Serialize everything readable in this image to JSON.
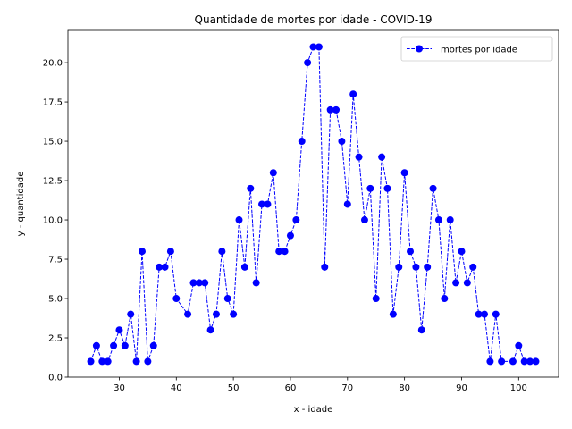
{
  "chart_data": {
    "type": "line",
    "title": "Quantidade de mortes por idade - COVID-19",
    "xlabel": "x - idade",
    "ylabel": "y - quantidade",
    "xlim": [
      21,
      107
    ],
    "ylim": [
      0,
      22.05
    ],
    "xticks": [
      30,
      40,
      50,
      60,
      70,
      80,
      90,
      100
    ],
    "yticks": [
      0.0,
      2.5,
      5.0,
      7.5,
      10.0,
      12.5,
      15.0,
      17.5,
      20.0
    ],
    "ytick_labels": [
      "0.0",
      "2.5",
      "5.0",
      "7.5",
      "10.0",
      "12.5",
      "15.0",
      "17.5",
      "20.0"
    ],
    "grid": false,
    "legend": {
      "position": "upper right"
    },
    "series": [
      {
        "name": "mortes por idade",
        "color": "#0000ff",
        "line_style": "dashed",
        "marker": "circle",
        "x": [
          25,
          26,
          27,
          28,
          29,
          30,
          31,
          32,
          33,
          34,
          35,
          36,
          37,
          38,
          39,
          40,
          42,
          43,
          44,
          45,
          46,
          47,
          48,
          49,
          50,
          51,
          52,
          53,
          54,
          55,
          56,
          57,
          58,
          59,
          60,
          61,
          62,
          63,
          64,
          65,
          66,
          67,
          68,
          69,
          70,
          71,
          72,
          73,
          74,
          75,
          76,
          77,
          78,
          79,
          80,
          81,
          82,
          83,
          84,
          85,
          86,
          87,
          88,
          89,
          90,
          91,
          92,
          93,
          94,
          95,
          96,
          97,
          99,
          100,
          101,
          102,
          103
        ],
        "y": [
          1,
          2,
          1,
          1,
          2,
          3,
          2,
          4,
          1,
          8,
          1,
          2,
          7,
          7,
          8,
          5,
          4,
          6,
          6,
          6,
          3,
          4,
          8,
          5,
          4,
          10,
          7,
          12,
          6,
          11,
          11,
          13,
          8,
          8,
          9,
          10,
          15,
          20,
          21,
          21,
          7,
          17,
          17,
          15,
          11,
          18,
          14,
          10,
          12,
          5,
          14,
          12,
          4,
          7,
          13,
          8,
          7,
          3,
          7,
          12,
          10,
          5,
          10,
          6,
          8,
          6,
          7,
          4,
          4,
          1,
          4,
          1,
          1,
          2,
          1,
          1,
          1
        ]
      }
    ]
  }
}
